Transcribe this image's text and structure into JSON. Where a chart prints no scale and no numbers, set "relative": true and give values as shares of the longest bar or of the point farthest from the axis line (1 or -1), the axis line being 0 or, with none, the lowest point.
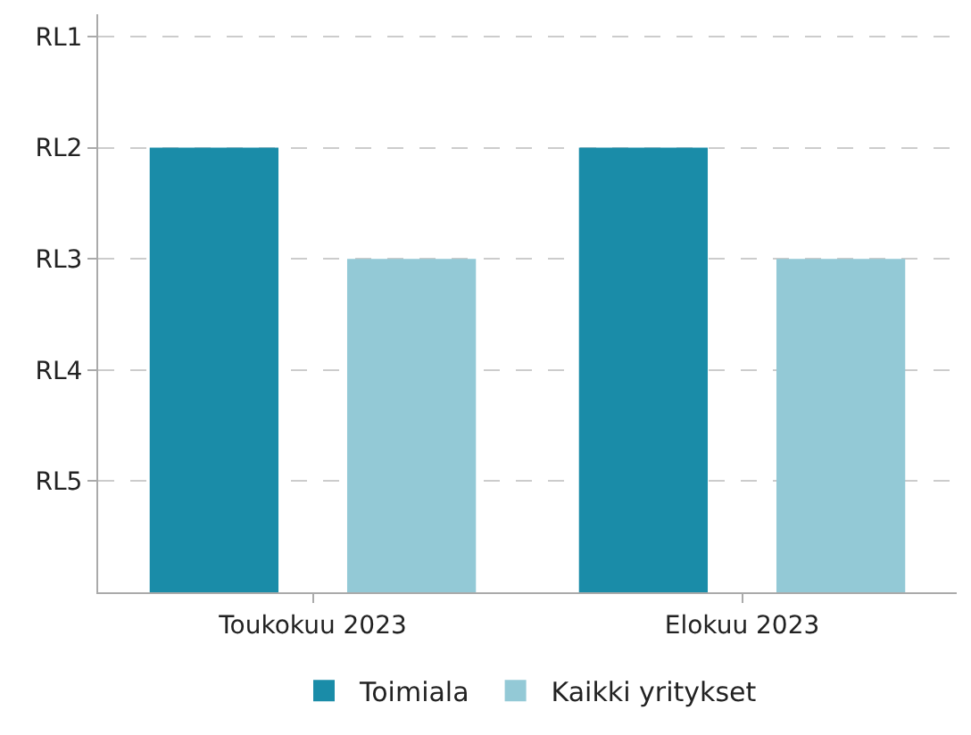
{
  "chart_data": {
    "type": "bar",
    "categories": [
      "Toukokuu 2023",
      "Elokuu 2023"
    ],
    "series": [
      {
        "name": "Toimiala",
        "color": "#1a8ca8",
        "values": [
          1,
          1
        ]
      },
      {
        "name": "Kaikki yritykset",
        "color": "#93c9d6",
        "values": [
          0.75,
          0.75
        ]
      }
    ],
    "relative": true,
    "annotations": [
      "RL1",
      "RL2",
      "RL3",
      "RL4",
      "RL5"
    ],
    "grid": "y",
    "legend": "bottom"
  }
}
